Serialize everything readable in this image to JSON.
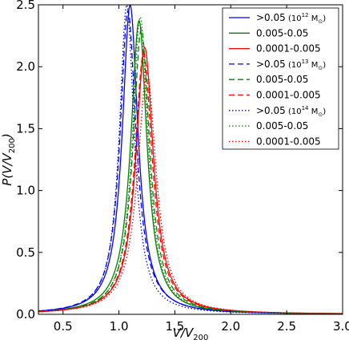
{
  "chart_data": {
    "type": "line",
    "title": "",
    "xlabel": "V/V",
    "xlabel_sub": "200",
    "ylabel": "P(V/V",
    "ylabel_sub": "200",
    "ylabel_close": ")",
    "xlim": [
      0.28,
      3.0
    ],
    "ylim": [
      0.0,
      2.5
    ],
    "xticks": [
      {
        "value": 0.5,
        "label": "0.5"
      },
      {
        "value": 1.0,
        "label": "1.0"
      },
      {
        "value": 1.5,
        "label": "1.5"
      },
      {
        "value": 2.0,
        "label": "2.0"
      },
      {
        "value": 2.5,
        "label": "2.5"
      },
      {
        "value": 3.0,
        "label": "3.0"
      }
    ],
    "yticks": [
      {
        "value": 0.0,
        "label": "0.0"
      },
      {
        "value": 0.5,
        "label": "0.5"
      },
      {
        "value": 1.0,
        "label": "1.0"
      },
      {
        "value": 1.5,
        "label": "1.5"
      },
      {
        "value": 2.0,
        "label": "2.0"
      },
      {
        "value": 2.5,
        "label": "2.5"
      }
    ],
    "grid": false,
    "legend_position": "top-right",
    "series": [
      {
        "name": ">0.05",
        "mass_prefix": " (10",
        "mass_exp": "12",
        "mass_suffix": " M",
        "sun_symbol": "⊙",
        "mass_close": ")",
        "color": "#0000ff",
        "linestyle": "solid",
        "peak_x": 1.1,
        "peak_y": 2.55,
        "width_left": 0.085,
        "width_right": 0.085
      },
      {
        "name": "0.005-0.05",
        "color": "#008000",
        "linestyle": "solid",
        "peak_x": 1.18,
        "peak_y": 2.42,
        "width_left": 0.09,
        "width_right": 0.085
      },
      {
        "name": "0.0001-0.005",
        "color": "#ff0000",
        "linestyle": "solid",
        "peak_x": 1.23,
        "peak_y": 2.2,
        "width_left": 0.095,
        "width_right": 0.095
      },
      {
        "name": ">0.05",
        "mass_prefix": " (10",
        "mass_exp": "13",
        "mass_suffix": " M",
        "sun_symbol": "⊙",
        "mass_close": ")",
        "color": "#0000ff",
        "linestyle": "dashed",
        "peak_x": 1.08,
        "peak_y": 2.5,
        "width_left": 0.085,
        "width_right": 0.09
      },
      {
        "name": "0.005-0.05",
        "color": "#008000",
        "linestyle": "dashed",
        "peak_x": 1.2,
        "peak_y": 2.35,
        "width_left": 0.09,
        "width_right": 0.09
      },
      {
        "name": "0.0001-0.005",
        "color": "#ff0000",
        "linestyle": "dashed",
        "peak_x": 1.22,
        "peak_y": 2.15,
        "width_left": 0.095,
        "width_right": 0.095
      },
      {
        "name": ">0.05",
        "mass_prefix": " (10",
        "mass_exp": "14",
        "mass_suffix": " M",
        "sun_symbol": "⊙",
        "mass_close": ")",
        "color": "#0000ff",
        "linestyle": "dotted",
        "peak_x": 1.07,
        "peak_y": 2.55,
        "width_left": 0.08,
        "width_right": 0.08
      },
      {
        "name": "0.005-0.05",
        "color": "#008000",
        "linestyle": "dotted",
        "peak_x": 1.19,
        "peak_y": 2.45,
        "width_left": 0.085,
        "width_right": 0.085
      },
      {
        "name": "0.0001-0.005",
        "color": "#ff0000",
        "linestyle": "dotted",
        "peak_x": 1.25,
        "peak_y": 2.0,
        "width_left": 0.1,
        "width_right": 0.1
      }
    ]
  }
}
